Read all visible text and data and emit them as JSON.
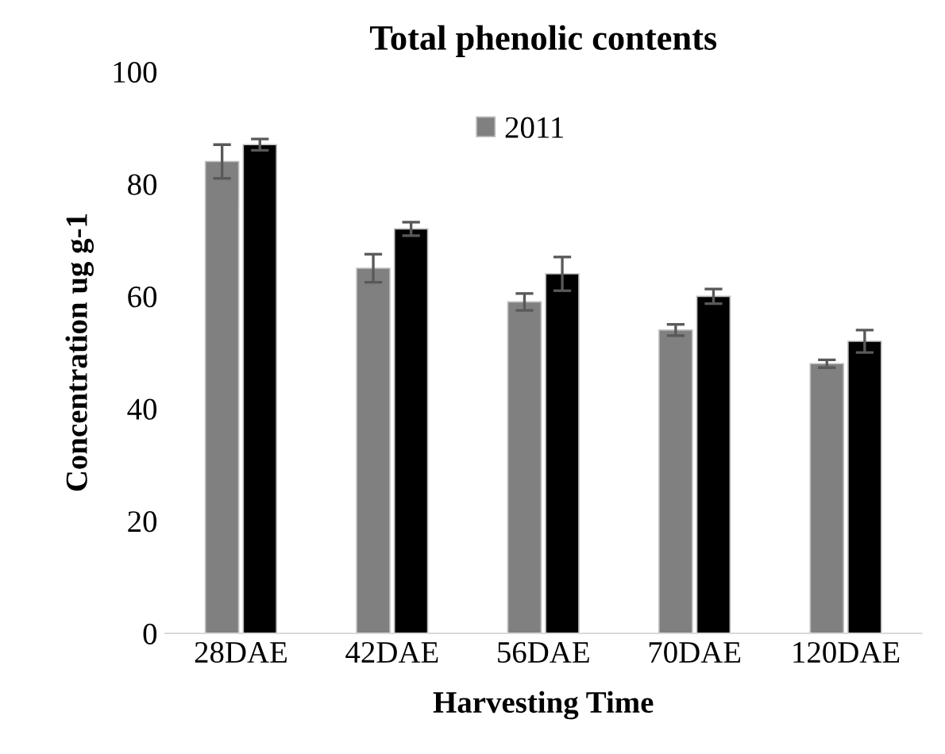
{
  "chart_data": {
    "type": "bar",
    "title": "Total phenolic contents",
    "xlabel": "Harvesting Time",
    "ylabel": "Concentration ug g-1",
    "categories": [
      "28DAE",
      "42DAE",
      "56DAE",
      "70DAE",
      "120DAE"
    ],
    "series": [
      {
        "name": "2011",
        "color": "#808080",
        "values": [
          84,
          65,
          59,
          54,
          48
        ],
        "errors": [
          3,
          2.5,
          1.5,
          1,
          0.7
        ]
      },
      {
        "color": "#000000",
        "values": [
          87,
          72,
          64,
          60,
          52
        ],
        "errors": [
          1,
          1.2,
          3,
          1.3,
          2
        ]
      }
    ],
    "ylim": [
      0,
      100
    ],
    "yticks": [
      0,
      20,
      40,
      60,
      80,
      100
    ],
    "grid": false,
    "legend": "top"
  }
}
